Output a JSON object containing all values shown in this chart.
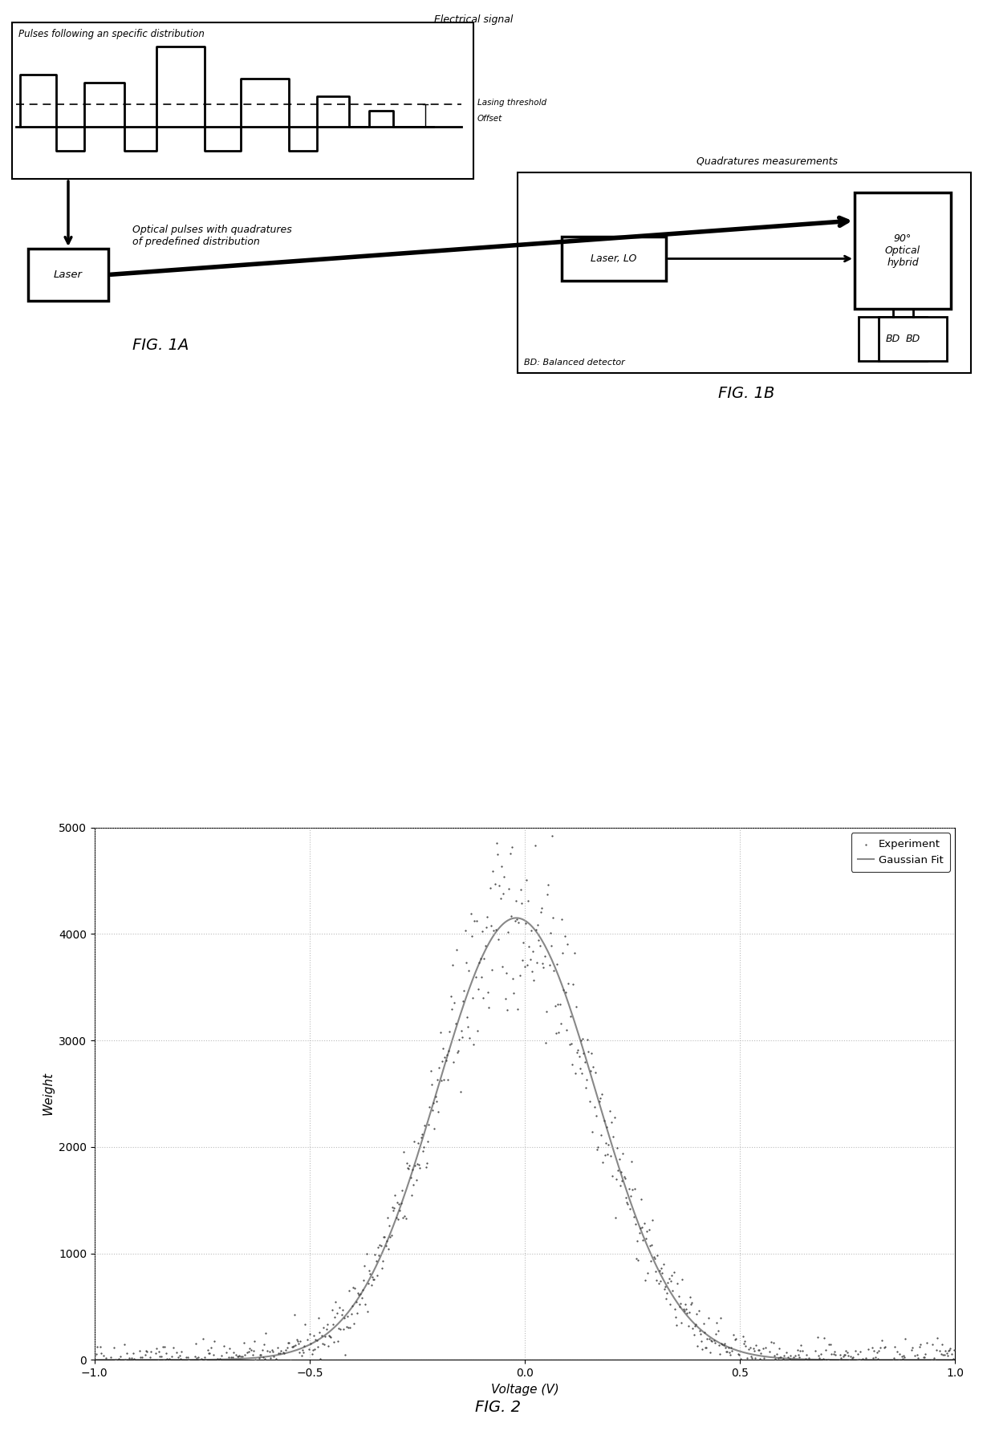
{
  "fig1a_label": "FIG. 1A",
  "fig1b_label": "FIG. 1B",
  "fig2_label": "FIG. 2",
  "electrical_signal_label": "Electrical signal",
  "pulses_label": "Pulses following an specific distribution",
  "lasing_threshold_label": "Lasing threshold",
  "offset_label": "Offset",
  "optical_pulses_label": "Optical pulses with quadratures\nof predefined distribution",
  "quadratures_label": "Quadratures measurements",
  "laser_label": "Laser",
  "laser_lo_label": "Laser, LO",
  "optical_hybrid_label": "90°\nOptical\nhybrid",
  "bd_label": "BD",
  "bd_note": "BD: Balanced detector",
  "plot_xlabel": "Voltage (V)",
  "plot_ylabel": "Weight",
  "legend_experiment": "Experiment",
  "legend_gaussian": "Gaussian Fit",
  "xlim": [
    -1,
    1
  ],
  "ylim": [
    0,
    5000
  ],
  "yticks": [
    0,
    1000,
    2000,
    3000,
    4000,
    5000
  ],
  "xticks": [
    -1,
    -0.5,
    0,
    0.5,
    1
  ],
  "gaussian_mu": -0.02,
  "gaussian_sigma": 0.185,
  "gaussian_amp": 4150,
  "background_color": "#ffffff",
  "scatter_color": "#444444",
  "gaussian_color": "#888888",
  "seed": 42,
  "fig_width": 12.4,
  "fig_height": 17.94,
  "dpi": 100
}
